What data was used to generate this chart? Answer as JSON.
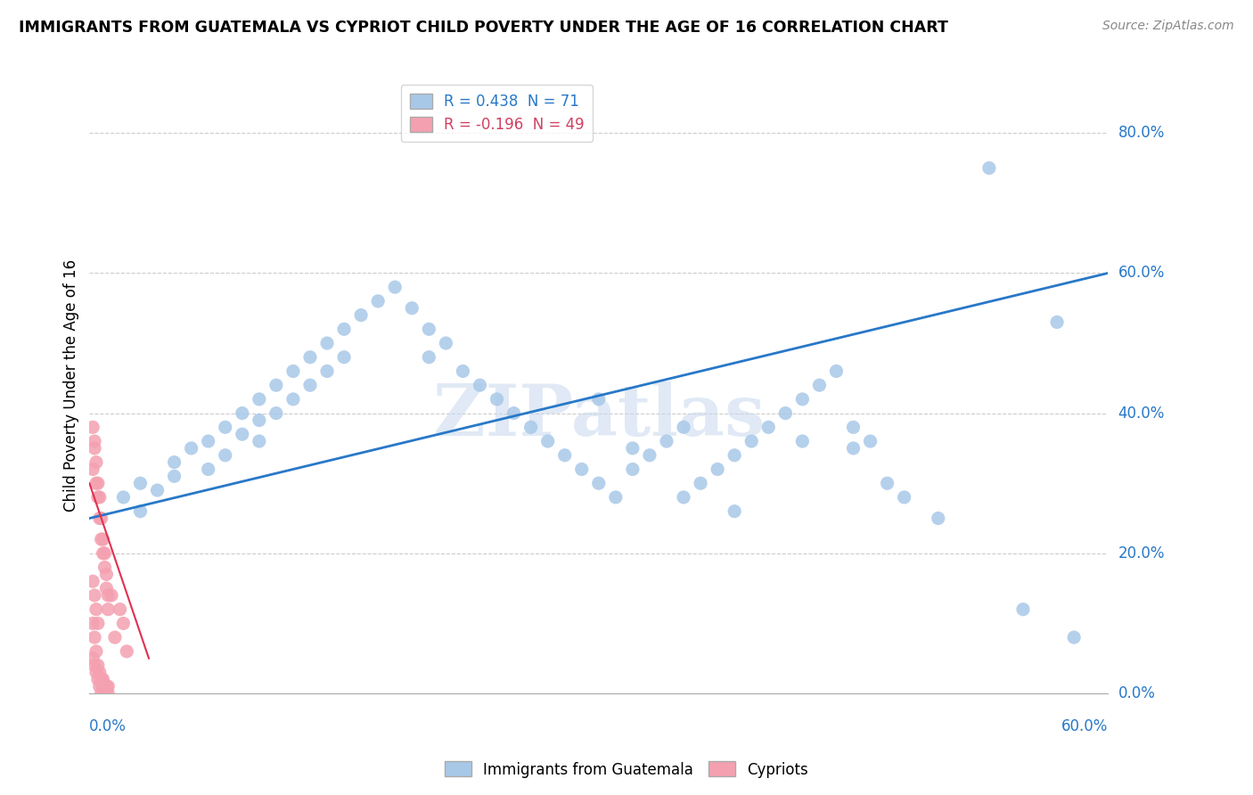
{
  "title": "IMMIGRANTS FROM GUATEMALA VS CYPRIOT CHILD POVERTY UNDER THE AGE OF 16 CORRELATION CHART",
  "source": "Source: ZipAtlas.com",
  "xlabel_bottom_left": "0.0%",
  "xlabel_bottom_right": "60.0%",
  "ylabel": "Child Poverty Under the Age of 16",
  "y_tick_labels": [
    "0.0%",
    "20.0%",
    "40.0%",
    "60.0%",
    "80.0%"
  ],
  "y_tick_values": [
    0.0,
    0.2,
    0.4,
    0.6,
    0.8
  ],
  "xlim": [
    0.0,
    0.6
  ],
  "ylim": [
    0.0,
    0.88
  ],
  "R_blue": 0.438,
  "N_blue": 71,
  "R_pink": -0.196,
  "N_pink": 49,
  "blue_color": "#a8c8e8",
  "pink_color": "#f4a0b0",
  "blue_line_color": "#2878c8",
  "pink_line_color": "#e03050",
  "watermark": "ZIPatlas",
  "legend_label_blue": "Immigrants from Guatemala",
  "legend_label_pink": "Cypriots",
  "blue_trend_x0": 0.0,
  "blue_trend_y0": 0.25,
  "blue_trend_x1": 0.6,
  "blue_trend_y1": 0.6,
  "pink_trend_x0": 0.0,
  "pink_trend_y0": 0.3,
  "pink_trend_x1": 0.035,
  "pink_trend_y1": 0.05,
  "blue_scatter_x": [
    0.02,
    0.03,
    0.03,
    0.04,
    0.05,
    0.05,
    0.06,
    0.07,
    0.07,
    0.08,
    0.08,
    0.09,
    0.09,
    0.1,
    0.1,
    0.1,
    0.11,
    0.11,
    0.12,
    0.12,
    0.13,
    0.13,
    0.14,
    0.14,
    0.15,
    0.15,
    0.16,
    0.17,
    0.18,
    0.19,
    0.2,
    0.2,
    0.21,
    0.22,
    0.23,
    0.24,
    0.25,
    0.26,
    0.27,
    0.28,
    0.29,
    0.3,
    0.31,
    0.32,
    0.33,
    0.34,
    0.35,
    0.36,
    0.37,
    0.38,
    0.39,
    0.4,
    0.41,
    0.42,
    0.43,
    0.44,
    0.45,
    0.46,
    0.47,
    0.48,
    0.3,
    0.32,
    0.35,
    0.38,
    0.42,
    0.45,
    0.5,
    0.53,
    0.55,
    0.58,
    0.57
  ],
  "blue_scatter_y": [
    0.28,
    0.3,
    0.26,
    0.29,
    0.33,
    0.31,
    0.35,
    0.36,
    0.32,
    0.38,
    0.34,
    0.4,
    0.37,
    0.42,
    0.39,
    0.36,
    0.44,
    0.4,
    0.46,
    0.42,
    0.48,
    0.44,
    0.5,
    0.46,
    0.52,
    0.48,
    0.54,
    0.56,
    0.58,
    0.55,
    0.52,
    0.48,
    0.5,
    0.46,
    0.44,
    0.42,
    0.4,
    0.38,
    0.36,
    0.34,
    0.32,
    0.3,
    0.28,
    0.32,
    0.34,
    0.36,
    0.38,
    0.3,
    0.32,
    0.34,
    0.36,
    0.38,
    0.4,
    0.42,
    0.44,
    0.46,
    0.38,
    0.36,
    0.3,
    0.28,
    0.42,
    0.35,
    0.28,
    0.26,
    0.36,
    0.35,
    0.25,
    0.75,
    0.12,
    0.08,
    0.53
  ],
  "pink_scatter_x": [
    0.002,
    0.003,
    0.004,
    0.005,
    0.006,
    0.007,
    0.008,
    0.009,
    0.01,
    0.011,
    0.002,
    0.003,
    0.004,
    0.005,
    0.006,
    0.007,
    0.008,
    0.009,
    0.01,
    0.011,
    0.002,
    0.003,
    0.004,
    0.005,
    0.006,
    0.007,
    0.008,
    0.009,
    0.01,
    0.011,
    0.002,
    0.003,
    0.004,
    0.005,
    0.006,
    0.007,
    0.008,
    0.009,
    0.01,
    0.011,
    0.002,
    0.003,
    0.004,
    0.005,
    0.013,
    0.015,
    0.018,
    0.02,
    0.022
  ],
  "pink_scatter_y": [
    0.32,
    0.35,
    0.3,
    0.28,
    0.25,
    0.22,
    0.2,
    0.18,
    0.15,
    0.12,
    0.38,
    0.36,
    0.33,
    0.3,
    0.28,
    0.25,
    0.22,
    0.2,
    0.17,
    0.14,
    0.05,
    0.04,
    0.03,
    0.02,
    0.01,
    0.0,
    0.02,
    0.01,
    0.0,
    0.01,
    0.1,
    0.08,
    0.06,
    0.04,
    0.03,
    0.02,
    0.01,
    0.0,
    0.01,
    0.0,
    0.16,
    0.14,
    0.12,
    0.1,
    0.14,
    0.08,
    0.12,
    0.1,
    0.06
  ]
}
